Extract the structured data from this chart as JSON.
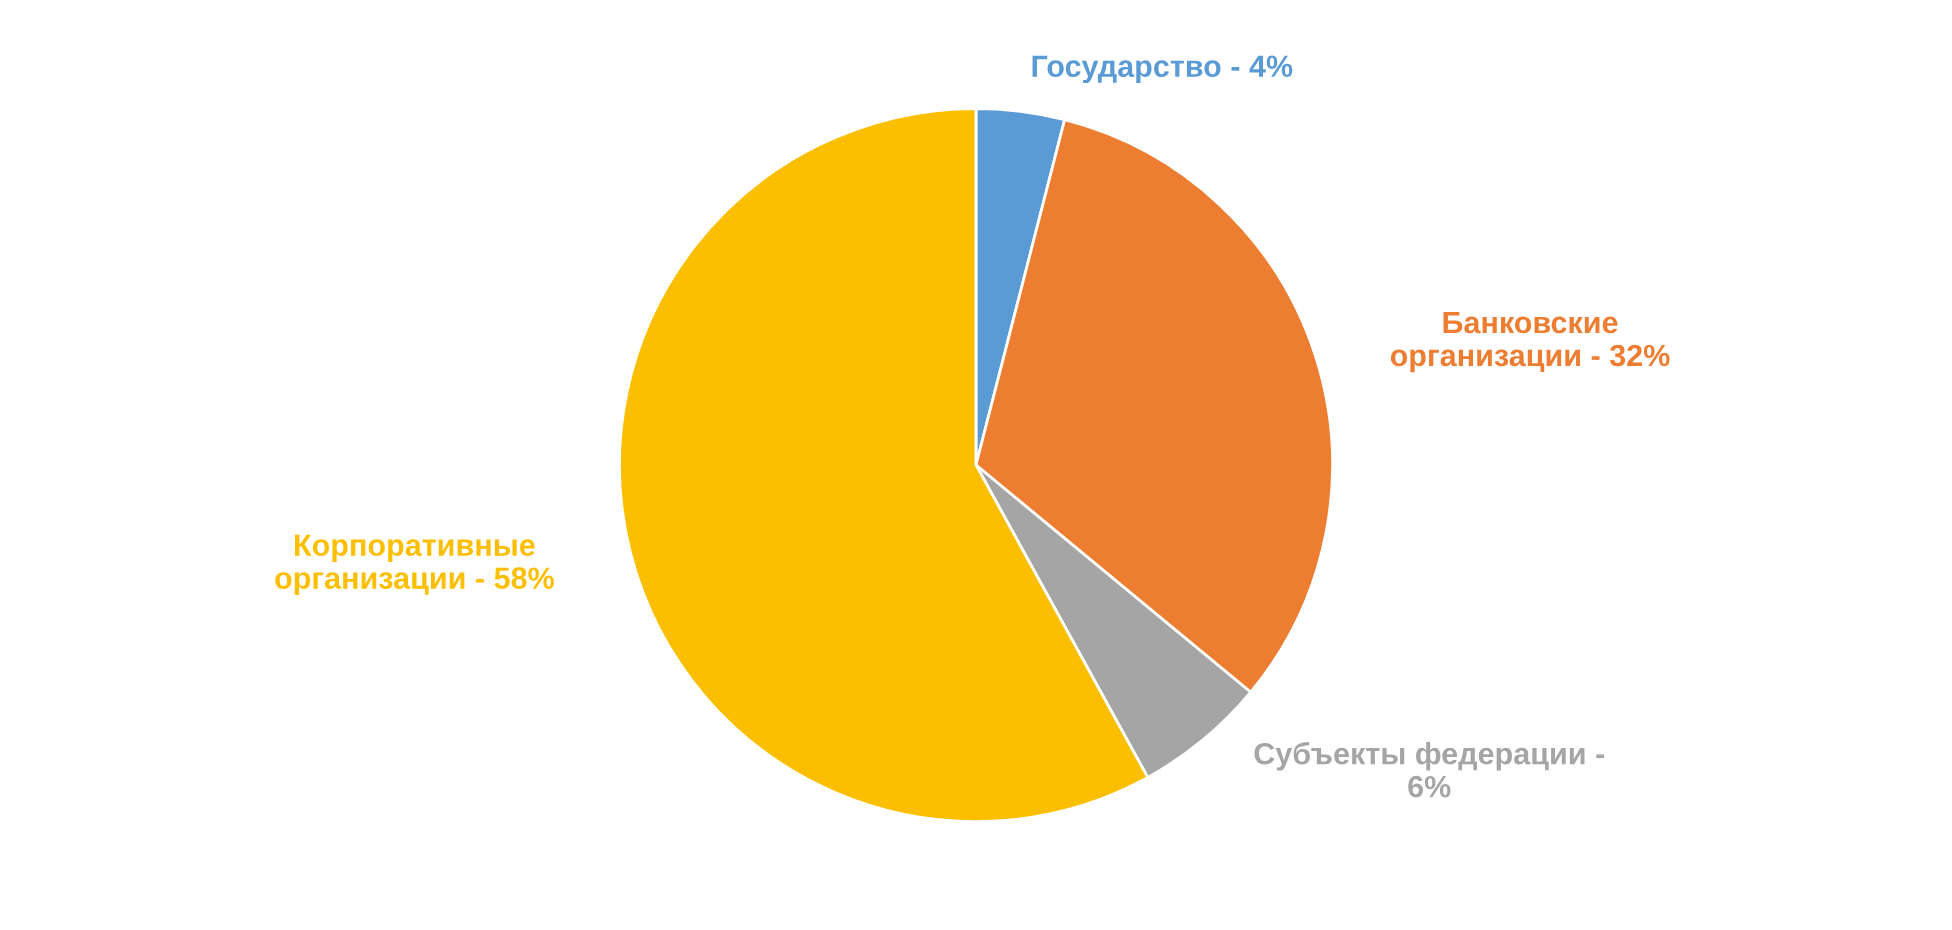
{
  "chart_data": {
    "type": "pie",
    "categories": [
      "Государство - 4%",
      "Банковские\nорганизации - 32%",
      "Субъекты федерации -\n6%",
      "Корпоративные\nорганизации - 58%"
    ],
    "values": [
      4,
      32,
      6,
      58
    ],
    "colors": [
      "#5b9bd5",
      "#ed7d31",
      "#a5a5a5",
      "#fbbf00"
    ],
    "legend": false
  }
}
